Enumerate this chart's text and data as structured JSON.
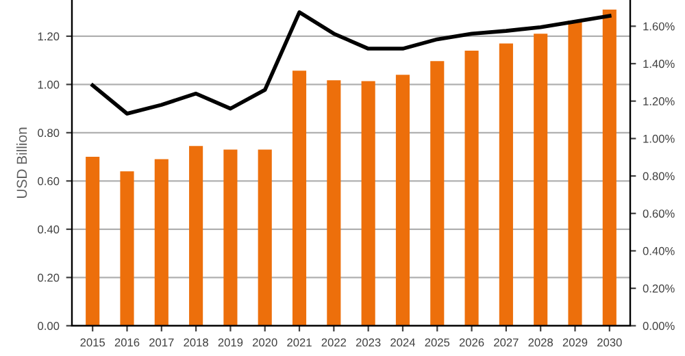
{
  "chart_data": {
    "type": "bar",
    "ylabel": "USD Billion",
    "categories": [
      "2015",
      "2016",
      "2017",
      "2018",
      "2019",
      "2020",
      "2021",
      "2022",
      "2023",
      "2024",
      "2025",
      "2026",
      "2027",
      "2028",
      "2029",
      "2030"
    ],
    "series": [
      {
        "color": "#ed6f0b",
        "values": [
          0.7,
          0.64,
          0.69,
          0.745,
          0.73,
          0.73,
          1.057,
          1.017,
          1.014,
          1.04,
          1.097,
          1.14,
          1.17,
          1.21,
          1.265,
          1.31
        ]
      },
      {
        "type": "line",
        "axis": "y2",
        "color": "#000000",
        "values": [
          1.284,
          1.133,
          1.18,
          1.24,
          1.16,
          1.26,
          1.675,
          1.56,
          1.48,
          1.48,
          1.53,
          1.56,
          1.575,
          1.595,
          1.625,
          1.655
        ]
      }
    ],
    "ylim": [
      0,
      1.35
    ],
    "yticks": [
      {
        "value": 0,
        "label": "0.00"
      },
      {
        "value": 0.2,
        "label": "0.20"
      },
      {
        "value": 0.4,
        "label": "0.40"
      },
      {
        "value": 0.6,
        "label": "0.60"
      },
      {
        "value": 0.8,
        "label": "0.80"
      },
      {
        "value": 1.0,
        "label": "1.00"
      },
      {
        "value": 1.2,
        "label": "1.20"
      }
    ],
    "y2lim": [
      0,
      1.74
    ],
    "y2ticks": [
      {
        "value": 0,
        "label": "0.00%"
      },
      {
        "value": 0.2,
        "label": "0.20%"
      },
      {
        "value": 0.4,
        "label": "0.40%"
      },
      {
        "value": 0.6,
        "label": "0.60%"
      },
      {
        "value": 0.8,
        "label": "0.80%"
      },
      {
        "value": 1.0,
        "label": "1.00%"
      },
      {
        "value": 1.2,
        "label": "1.20%"
      },
      {
        "value": 1.4,
        "label": "1.40%"
      },
      {
        "value": 1.6,
        "label": "1.60%"
      }
    ],
    "grid": "y",
    "legend": false
  }
}
